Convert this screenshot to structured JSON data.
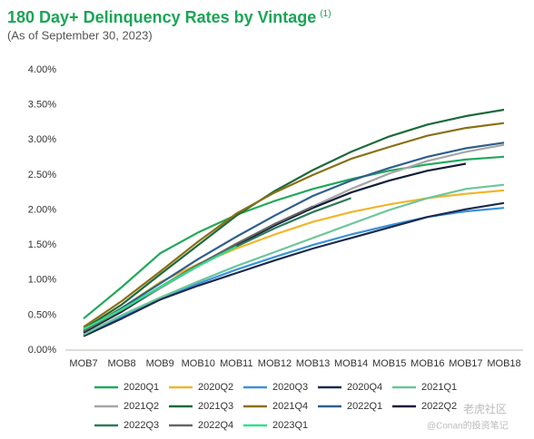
{
  "chart_data": {
    "type": "line",
    "title": "180 Day+ Delinquency Rates by Vintage",
    "title_note": "(1)",
    "subtitle": "(As of September 30, 2023)",
    "watermark": [
      "老虎社区",
      "@Conan的投资笔记"
    ],
    "categories": [
      "MOB7",
      "MOB8",
      "MOB9",
      "MOB10",
      "MOB11",
      "MOB12",
      "MOB13",
      "MOB14",
      "MOB15",
      "MOB16",
      "MOB17",
      "MOB18"
    ],
    "ylim": [
      0,
      4
    ],
    "yticks": [
      {
        "value": 0,
        "label": "0.00%"
      },
      {
        "value": 0.5,
        "label": "0.50%"
      },
      {
        "value": 1,
        "label": "1.00%"
      },
      {
        "value": 1.5,
        "label": "1.50%"
      },
      {
        "value": 2,
        "label": "2.00%"
      },
      {
        "value": 2.5,
        "label": "2.50%"
      },
      {
        "value": 3,
        "label": "3.00%"
      },
      {
        "value": 3.5,
        "label": "3.50%"
      },
      {
        "value": 4,
        "label": "4.00%"
      }
    ],
    "grid": false,
    "legend": "bottom",
    "series": [
      {
        "name": "2020Q1",
        "color": "#21a95a",
        "values": [
          0.45,
          0.9,
          1.38,
          1.68,
          1.93,
          2.13,
          2.3,
          2.44,
          2.56,
          2.65,
          2.72,
          2.76
        ]
      },
      {
        "name": "2020Q2",
        "color": "#f0b62a",
        "values": [
          0.3,
          0.6,
          0.97,
          1.23,
          1.45,
          1.65,
          1.83,
          1.97,
          2.08,
          2.17,
          2.23,
          2.28
        ]
      },
      {
        "name": "2020Q3",
        "color": "#3a92dc",
        "values": [
          0.22,
          0.48,
          0.73,
          0.95,
          1.15,
          1.33,
          1.5,
          1.65,
          1.78,
          1.9,
          1.98,
          2.03
        ]
      },
      {
        "name": "2020Q4",
        "color": "#1c2b4c",
        "values": [
          0.2,
          0.45,
          0.72,
          0.92,
          1.1,
          1.28,
          1.45,
          1.6,
          1.75,
          1.9,
          2.01,
          2.1
        ]
      },
      {
        "name": "2021Q1",
        "color": "#6cc59a",
        "values": [
          0.22,
          0.5,
          0.75,
          0.98,
          1.2,
          1.4,
          1.6,
          1.8,
          2.0,
          2.17,
          2.3,
          2.36
        ]
      },
      {
        "name": "2021Q2",
        "color": "#a6a6a6",
        "values": [
          0.25,
          0.55,
          0.88,
          1.2,
          1.5,
          1.78,
          2.05,
          2.3,
          2.52,
          2.7,
          2.83,
          2.93
        ]
      },
      {
        "name": "2021Q3",
        "color": "#1d6a3a",
        "values": [
          0.3,
          0.65,
          1.08,
          1.5,
          1.92,
          2.27,
          2.57,
          2.83,
          3.05,
          3.22,
          3.34,
          3.43
        ]
      },
      {
        "name": "2021Q4",
        "color": "#8a7014",
        "values": [
          0.33,
          0.7,
          1.12,
          1.55,
          1.95,
          2.25,
          2.5,
          2.73,
          2.9,
          3.06,
          3.17,
          3.24
        ]
      },
      {
        "name": "2022Q1",
        "color": "#2e5f8c",
        "values": [
          0.27,
          0.6,
          0.95,
          1.3,
          1.62,
          1.92,
          2.2,
          2.42,
          2.6,
          2.76,
          2.88,
          2.96
        ]
      },
      {
        "name": "2022Q2",
        "color": "#101e3a",
        "values": [
          0.25,
          0.55,
          0.9,
          1.22,
          1.5,
          1.78,
          2.03,
          2.25,
          2.42,
          2.56,
          2.66,
          null
        ]
      },
      {
        "name": "2022Q3",
        "color": "#2d7a5a",
        "values": [
          0.28,
          0.58,
          0.9,
          1.2,
          1.48,
          1.74,
          1.97,
          2.17,
          null,
          null,
          null,
          null
        ]
      },
      {
        "name": "2022Q4",
        "color": "#666666",
        "values": [
          0.27,
          0.57,
          0.9,
          1.22,
          1.52,
          1.8,
          2.05,
          null,
          null,
          null,
          null,
          null
        ]
      },
      {
        "name": "2023Q1",
        "color": "#2fe08c",
        "values": [
          0.3,
          0.58,
          0.9,
          1.2,
          1.48,
          null,
          null,
          null,
          null,
          null,
          null,
          null
        ]
      }
    ]
  }
}
